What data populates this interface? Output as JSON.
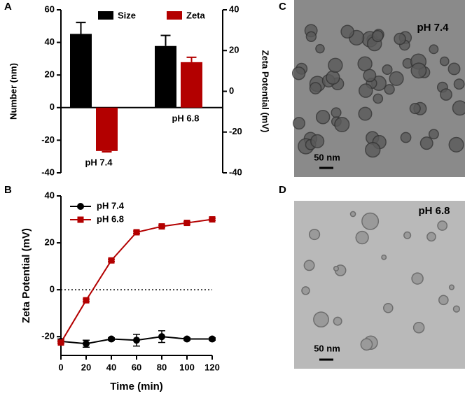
{
  "panel_labels": [
    "A",
    "B",
    "C",
    "D"
  ],
  "micrographs": [
    {
      "label": "pH 7.4",
      "scale_bar": "50 nm"
    },
    {
      "label": "pH 6.8",
      "scale_bar": "50 nm"
    }
  ],
  "chart_data": [
    {
      "type": "bar",
      "categories": [
        "pH 7.4",
        "pH 6.8"
      ],
      "ylabel": "Number (nm)",
      "y2label": "Zeta Potential (mV)",
      "ylim": [
        -40,
        60
      ],
      "yticks": [
        -40,
        -20,
        0,
        20,
        40,
        60
      ],
      "y2lim": [
        -40,
        40
      ],
      "y2ticks": [
        -40,
        -20,
        0,
        20,
        40
      ],
      "series": [
        {
          "name": "Size",
          "color": "#000000",
          "values": [
            45.2,
            37.8
          ],
          "errors": [
            7,
            6.5
          ]
        },
        {
          "name": "Zeta",
          "color": "#b30000",
          "axis": "y2",
          "values": [
            -29.3,
            14.3
          ],
          "errors": [
            0.4,
            2.4
          ]
        }
      ],
      "legend": "top"
    },
    {
      "type": "line",
      "xlabel": "Time (min)",
      "ylabel": "Zeta Potential (mV)",
      "x": [
        0,
        20,
        40,
        60,
        80,
        100,
        120
      ],
      "xlim": [
        0,
        120
      ],
      "xticks": [
        0,
        20,
        40,
        60,
        80,
        100,
        120
      ],
      "ylim": [
        -28,
        40
      ],
      "yticks": [
        -20,
        0,
        20,
        40
      ],
      "zero_line": true,
      "series": [
        {
          "name": "pH 7.4",
          "color": "#000000",
          "marker": "circle",
          "values": [
            -22,
            -23,
            -21,
            -21.5,
            -20,
            -21,
            -21
          ],
          "errors": [
            1,
            1.5,
            0.5,
            2.5,
            2.5,
            0.5,
            0.5
          ]
        },
        {
          "name": "pH 6.8",
          "color": "#b30000",
          "marker": "square",
          "values": [
            -22.5,
            -4.5,
            12.5,
            24.5,
            27,
            28.5,
            30
          ],
          "errors": [
            0.5,
            0.5,
            0.5,
            0.5,
            0.5,
            0.5,
            0.5
          ]
        }
      ],
      "legend": "top-left"
    }
  ]
}
